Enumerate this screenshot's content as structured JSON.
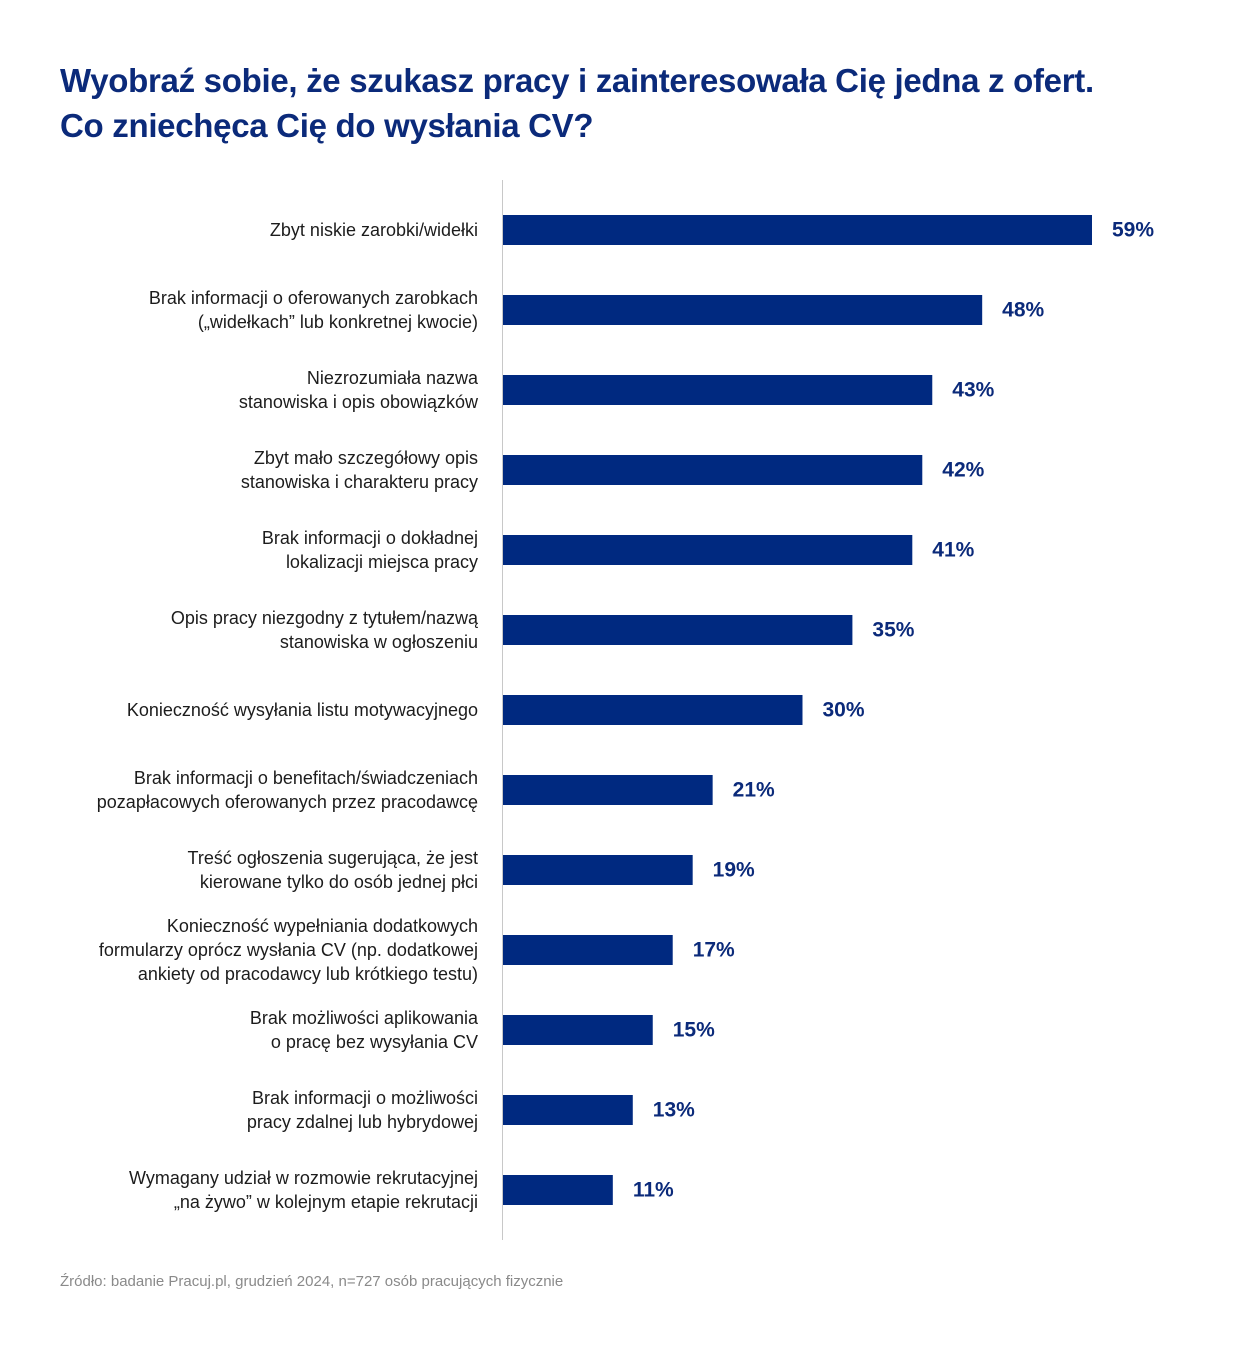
{
  "chart_data": {
    "type": "bar",
    "orientation": "horizontal",
    "title": {
      "line1": "Wyobraź sobie, że szukasz pracy i zainteresowała Cię jedna z ofert.",
      "line2": "Co zniechęca Cię do wysłania CV?"
    },
    "categories": [
      [
        "Zbyt niskie zarobki/widełki"
      ],
      [
        "Brak informacji o oferowanych zarobkach",
        "(„widełkach” lub konkretnej kwocie)"
      ],
      [
        "Niezrozumiała nazwa",
        "stanowiska i opis obowiązków"
      ],
      [
        "Zbyt mało szczegółowy opis",
        "stanowiska i charakteru pracy"
      ],
      [
        "Brak informacji o dokładnej",
        "lokalizacji miejsca pracy"
      ],
      [
        "Opis pracy niezgodny z tytułem/nazwą",
        "stanowiska w ogłoszeniu"
      ],
      [
        "Konieczność wysyłania listu motywacyjnego"
      ],
      [
        "Brak informacji o benefitach/świadczeniach",
        "pozapłacowych oferowanych przez pracodawcę"
      ],
      [
        "Treść ogłoszenia sugerująca, że jest",
        "kierowane tylko do osób jednej płci"
      ],
      [
        "Konieczność wypełniania dodatkowych",
        "formularzy oprócz wysłania CV (np. dodatkowej",
        "ankiety od pracodawcy lub krótkiego testu)"
      ],
      [
        "Brak możliwości aplikowania",
        "o pracę bez wysyłania CV"
      ],
      [
        "Brak informacji o możliwości",
        "pracy zdalnej lub hybrydowej"
      ],
      [
        "Wymagany udział w rozmowie rekrutacyjnej",
        "„na żywo” w kolejnym etapie rekrutacji"
      ]
    ],
    "values": [
      59,
      48,
      43,
      42,
      41,
      35,
      30,
      21,
      19,
      17,
      15,
      13,
      11
    ],
    "value_labels": [
      "59%",
      "48%",
      "43%",
      "42%",
      "41%",
      "35%",
      "30%",
      "21%",
      "19%",
      "17%",
      "15%",
      "13%",
      "11%"
    ],
    "unit": "%",
    "xlim": [
      0,
      59
    ],
    "grid": false,
    "legend": "none",
    "colors": {
      "bar": "#002980",
      "title": "#0b2a7a",
      "value_label": "#0b2a7a",
      "axis_line": "#c8c8c8",
      "source": "#8a8a8a"
    }
  },
  "source_note": "Źródło: badanie Pracuj.pl, grudzień 2024, n=727 osób pracujących fizycznie"
}
